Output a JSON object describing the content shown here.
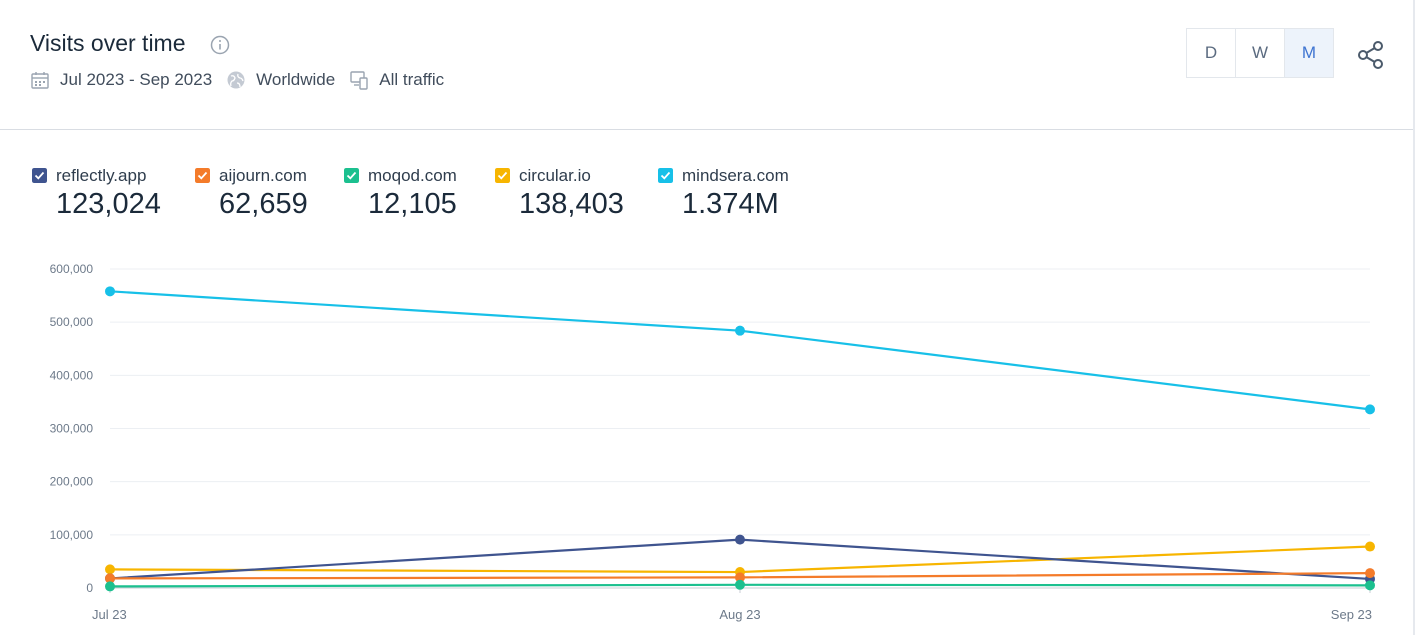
{
  "header": {
    "title": "Visits over time",
    "date_range": "Jul 2023 - Sep 2023",
    "region": "Worldwide",
    "traffic": "All traffic",
    "granularity": {
      "options": [
        "D",
        "W",
        "M"
      ],
      "selected": "M"
    },
    "icons": {
      "info": "info-icon",
      "date": "calendar-icon",
      "region": "globe-icon",
      "traffic": "devices-icon",
      "share": "share-icon"
    }
  },
  "legend": [
    {
      "name": "reflectly.app",
      "total": "123,024",
      "color": "#3f548f"
    },
    {
      "name": "aijourn.com",
      "total": "62,659",
      "color": "#f47b2a"
    },
    {
      "name": "moqod.com",
      "total": "12,105",
      "color": "#1cc08f"
    },
    {
      "name": "circular.io",
      "total": "138,403",
      "color": "#f7b500"
    },
    {
      "name": "mindsera.com",
      "total": "1.374M",
      "color": "#17c0e8"
    }
  ],
  "chart_data": {
    "type": "line",
    "x": [
      "Jul 23",
      "Aug 23",
      "Sep 23"
    ],
    "ylim": [
      0,
      600000
    ],
    "yticks": [
      "0",
      "100,000",
      "200,000",
      "300,000",
      "400,000",
      "500,000",
      "600,000"
    ],
    "grid": true,
    "series": [
      {
        "name": "mindsera.com",
        "color": "#17c0e8",
        "values": [
          558000,
          484000,
          336000
        ]
      },
      {
        "name": "circular.io",
        "color": "#f7b500",
        "values": [
          35000,
          30000,
          78000
        ]
      },
      {
        "name": "reflectly.app",
        "color": "#3f548f",
        "values": [
          18000,
          91000,
          17000
        ]
      },
      {
        "name": "aijourn.com",
        "color": "#f47b2a",
        "values": [
          18000,
          20000,
          28000
        ]
      },
      {
        "name": "moqod.com",
        "color": "#1cc08f",
        "values": [
          3000,
          6000,
          5000
        ]
      }
    ]
  }
}
